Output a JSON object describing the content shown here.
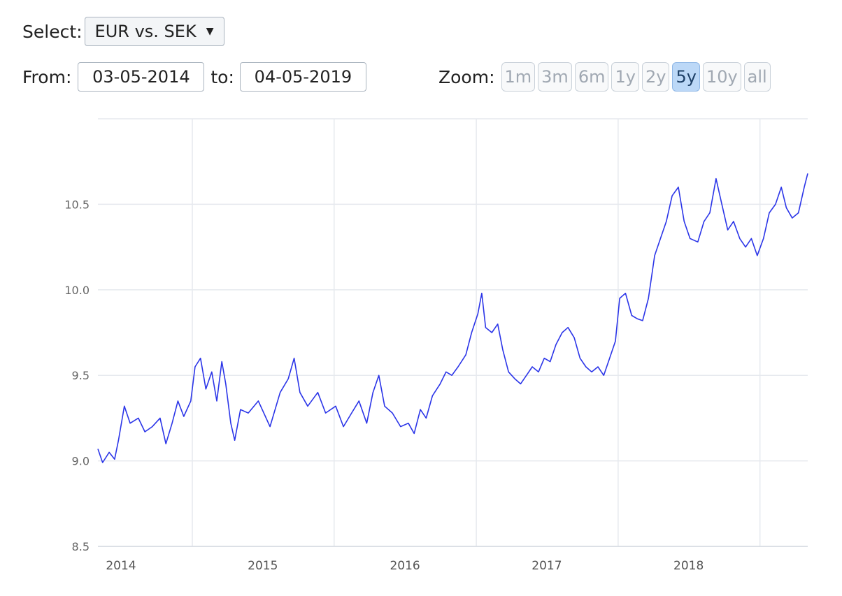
{
  "select": {
    "label": "Select:",
    "value": "EUR vs. SEK"
  },
  "range": {
    "from_label": "From:",
    "from_value": "03-05-2014",
    "to_label": "to:",
    "to_value": "04-05-2019"
  },
  "zoom": {
    "label": "Zoom:",
    "buttons": [
      "1m",
      "3m",
      "6m",
      "1y",
      "2y",
      "5y",
      "10y",
      "all"
    ],
    "active": "5y"
  },
  "colors": {
    "line": "#2b35e8",
    "grid": "#e6e9ee",
    "active_button": "#bcd8f7"
  },
  "chart_data": {
    "type": "line",
    "title": "",
    "xlabel": "",
    "ylabel": "",
    "ylim": [
      8.5,
      11.0
    ],
    "xlim": [
      "2014-05-03",
      "2019-05-04"
    ],
    "y_ticks": [
      8.5,
      9.0,
      9.5,
      10.0,
      10.5
    ],
    "y_tick_labels": [
      "8.5",
      "9.0",
      "9.5",
      "10.0",
      "10.5"
    ],
    "x_ticks": [
      "2014-05-03",
      "2015-05-03",
      "2016-05-03",
      "2017-05-03",
      "2018-05-03"
    ],
    "x_tick_labels": [
      "2014",
      "2015",
      "2016",
      "2017",
      "2018"
    ],
    "x_grid": [
      "2015-01-01",
      "2016-01-01",
      "2017-01-01",
      "2018-01-01",
      "2019-01-01"
    ],
    "grid": true,
    "series": [
      {
        "points": [
          [
            "2014-05-03",
            9.07
          ],
          [
            "2014-05-15",
            8.99
          ],
          [
            "2014-06-01",
            9.05
          ],
          [
            "2014-06-15",
            9.01
          ],
          [
            "2014-06-25",
            9.12
          ],
          [
            "2014-07-10",
            9.32
          ],
          [
            "2014-07-25",
            9.22
          ],
          [
            "2014-08-15",
            9.25
          ],
          [
            "2014-09-01",
            9.17
          ],
          [
            "2014-09-20",
            9.2
          ],
          [
            "2014-10-10",
            9.25
          ],
          [
            "2014-10-25",
            9.1
          ],
          [
            "2014-11-10",
            9.22
          ],
          [
            "2014-11-25",
            9.35
          ],
          [
            "2014-12-10",
            9.26
          ],
          [
            "2014-12-28",
            9.35
          ],
          [
            "2015-01-08",
            9.55
          ],
          [
            "2015-01-22",
            9.6
          ],
          [
            "2015-02-05",
            9.42
          ],
          [
            "2015-02-20",
            9.52
          ],
          [
            "2015-03-05",
            9.35
          ],
          [
            "2015-03-18",
            9.58
          ],
          [
            "2015-03-28",
            9.45
          ],
          [
            "2015-04-10",
            9.22
          ],
          [
            "2015-04-20",
            9.12
          ],
          [
            "2015-05-05",
            9.3
          ],
          [
            "2015-05-25",
            9.28
          ],
          [
            "2015-06-20",
            9.35
          ],
          [
            "2015-07-20",
            9.2
          ],
          [
            "2015-08-15",
            9.4
          ],
          [
            "2015-09-05",
            9.48
          ],
          [
            "2015-09-20",
            9.6
          ],
          [
            "2015-10-05",
            9.4
          ],
          [
            "2015-10-25",
            9.32
          ],
          [
            "2015-11-20",
            9.4
          ],
          [
            "2015-12-10",
            9.28
          ],
          [
            "2016-01-05",
            9.32
          ],
          [
            "2016-01-25",
            9.2
          ],
          [
            "2016-02-15",
            9.28
          ],
          [
            "2016-03-05",
            9.35
          ],
          [
            "2016-03-25",
            9.22
          ],
          [
            "2016-04-10",
            9.4
          ],
          [
            "2016-04-25",
            9.5
          ],
          [
            "2016-05-10",
            9.32
          ],
          [
            "2016-05-30",
            9.28
          ],
          [
            "2016-06-20",
            9.2
          ],
          [
            "2016-07-10",
            9.22
          ],
          [
            "2016-07-25",
            9.16
          ],
          [
            "2016-08-10",
            9.3
          ],
          [
            "2016-08-25",
            9.25
          ],
          [
            "2016-09-10",
            9.38
          ],
          [
            "2016-09-30",
            9.45
          ],
          [
            "2016-10-15",
            9.52
          ],
          [
            "2016-10-30",
            9.5
          ],
          [
            "2016-11-15",
            9.55
          ],
          [
            "2016-12-05",
            9.62
          ],
          [
            "2016-12-20",
            9.75
          ],
          [
            "2017-01-05",
            9.86
          ],
          [
            "2017-01-15",
            9.98
          ],
          [
            "2017-01-25",
            9.78
          ],
          [
            "2017-02-10",
            9.75
          ],
          [
            "2017-02-25",
            9.8
          ],
          [
            "2017-03-10",
            9.65
          ],
          [
            "2017-03-25",
            9.52
          ],
          [
            "2017-04-10",
            9.48
          ],
          [
            "2017-04-25",
            9.45
          ],
          [
            "2017-05-10",
            9.5
          ],
          [
            "2017-05-25",
            9.55
          ],
          [
            "2017-06-10",
            9.52
          ],
          [
            "2017-06-25",
            9.6
          ],
          [
            "2017-07-10",
            9.58
          ],
          [
            "2017-07-25",
            9.68
          ],
          [
            "2017-08-10",
            9.75
          ],
          [
            "2017-08-25",
            9.78
          ],
          [
            "2017-09-10",
            9.72
          ],
          [
            "2017-09-25",
            9.6
          ],
          [
            "2017-10-10",
            9.55
          ],
          [
            "2017-10-25",
            9.52
          ],
          [
            "2017-11-10",
            9.55
          ],
          [
            "2017-11-25",
            9.5
          ],
          [
            "2017-12-10",
            9.6
          ],
          [
            "2017-12-25",
            9.7
          ],
          [
            "2018-01-05",
            9.95
          ],
          [
            "2018-01-20",
            9.98
          ],
          [
            "2018-02-05",
            9.85
          ],
          [
            "2018-02-20",
            9.83
          ],
          [
            "2018-03-05",
            9.82
          ],
          [
            "2018-03-20",
            9.95
          ],
          [
            "2018-04-05",
            10.2
          ],
          [
            "2018-04-20",
            10.3
          ],
          [
            "2018-05-05",
            10.4
          ],
          [
            "2018-05-20",
            10.55
          ],
          [
            "2018-06-05",
            10.6
          ],
          [
            "2018-06-20",
            10.4
          ],
          [
            "2018-07-05",
            10.3
          ],
          [
            "2018-07-25",
            10.28
          ],
          [
            "2018-08-10",
            10.4
          ],
          [
            "2018-08-25",
            10.45
          ],
          [
            "2018-09-10",
            10.65
          ],
          [
            "2018-09-25",
            10.5
          ],
          [
            "2018-10-10",
            10.35
          ],
          [
            "2018-10-25",
            10.4
          ],
          [
            "2018-11-10",
            10.3
          ],
          [
            "2018-11-25",
            10.25
          ],
          [
            "2018-12-10",
            10.3
          ],
          [
            "2018-12-25",
            10.2
          ],
          [
            "2019-01-10",
            10.3
          ],
          [
            "2019-01-25",
            10.45
          ],
          [
            "2019-02-10",
            10.5
          ],
          [
            "2019-02-25",
            10.6
          ],
          [
            "2019-03-10",
            10.48
          ],
          [
            "2019-03-25",
            10.42
          ],
          [
            "2019-04-10",
            10.45
          ],
          [
            "2019-04-25",
            10.6
          ],
          [
            "2019-05-04",
            10.68
          ]
        ]
      }
    ]
  }
}
